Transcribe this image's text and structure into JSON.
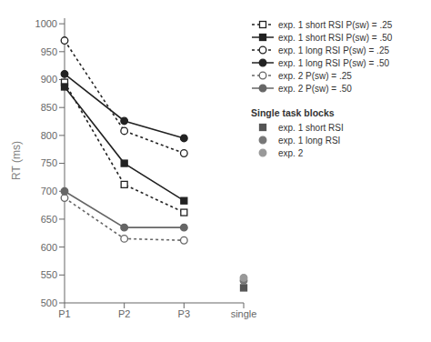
{
  "chart_data": {
    "type": "line",
    "categories": [
      "P1",
      "P2",
      "P3",
      "single"
    ],
    "ylabel": "RT (ms)",
    "ylim": [
      500,
      1010
    ],
    "yticks": [
      500,
      550,
      600,
      650,
      700,
      750,
      800,
      850,
      900,
      950,
      1000
    ],
    "grid": false,
    "legend": "right",
    "legend_title": "Single task blocks",
    "series": [
      {
        "name": "exp. 1 short RSI P(sw) = .25",
        "type": "line",
        "color": "#222222",
        "marker": "square_open",
        "line_style": "dotted",
        "values": [
          895,
          712,
          662,
          null
        ]
      },
      {
        "name": "exp. 1 short RSI P(sw) = .50",
        "type": "line",
        "color": "#222222",
        "marker": "square_filled",
        "line_style": "solid",
        "values": [
          887,
          750,
          683,
          null
        ]
      },
      {
        "name": "exp. 1 long RSI P(sw) = .25",
        "type": "line",
        "color": "#222222",
        "marker": "circle_open",
        "line_style": "dotted",
        "values": [
          970,
          808,
          768,
          null
        ]
      },
      {
        "name": "exp. 1 long RSI P(sw) = .50",
        "type": "line",
        "color": "#222222",
        "marker": "circle_filled",
        "line_style": "solid",
        "values": [
          910,
          826,
          795,
          null
        ]
      },
      {
        "name": "exp. 2 P(sw) = .25",
        "type": "line",
        "color": "#666666",
        "marker": "circle_open",
        "line_style": "dotted",
        "values": [
          688,
          615,
          612,
          null
        ]
      },
      {
        "name": "exp. 2 P(sw) = .50",
        "type": "line",
        "color": "#666666",
        "marker": "circle_filled",
        "line_style": "solid",
        "values": [
          700,
          635,
          635,
          null
        ]
      },
      {
        "name": "exp. 1 short RSI",
        "type": "scatter",
        "color": "#555555",
        "marker": "square_filled",
        "values": [
          null,
          null,
          null,
          527
        ]
      },
      {
        "name": "exp. 1 long RSI",
        "type": "scatter",
        "color": "#777777",
        "marker": "circle_filled",
        "values": [
          null,
          null,
          null,
          540
        ]
      },
      {
        "name": "exp. 2",
        "type": "scatter",
        "color": "#999999",
        "marker": "circle_filled",
        "values": [
          null,
          null,
          null,
          545
        ]
      }
    ]
  }
}
